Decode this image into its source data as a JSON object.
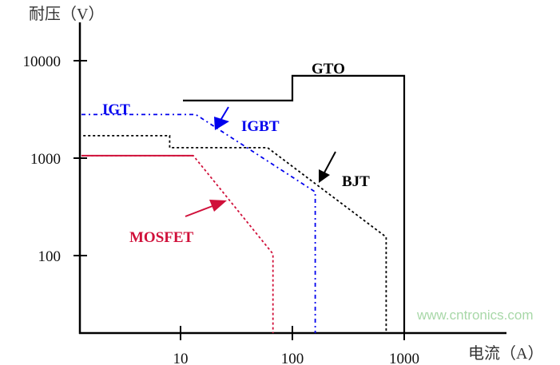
{
  "chart_data": {
    "type": "line",
    "xlabel": "电流（A）",
    "ylabel": "耐压（V）",
    "x_scale": "log",
    "y_scale": "log",
    "xlim": [
      1.26,
      7900
    ],
    "ylim": [
      16,
      24000
    ],
    "x_ticks": [
      {
        "value": 10,
        "label": "10"
      },
      {
        "value": 100,
        "label": "100"
      },
      {
        "value": 1000,
        "label": "1000"
      }
    ],
    "y_ticks": [
      {
        "value": 10000,
        "label": "10000"
      },
      {
        "value": 1000,
        "label": "1000"
      },
      {
        "value": 100,
        "label": "100"
      }
    ],
    "grid": false,
    "series": [
      {
        "name": "GTO",
        "color": "#000000",
        "style": "solid",
        "points": [
          [
            10.5,
            3900
          ],
          [
            100,
            3900
          ],
          [
            100,
            7000
          ],
          [
            1000,
            7000
          ],
          [
            1000,
            16
          ]
        ]
      },
      {
        "name": "IGBT",
        "color": "#0000ee",
        "style": "dash-dot",
        "points": [
          [
            1.3,
            2800
          ],
          [
            13.7,
            2800
          ],
          [
            160,
            450
          ],
          [
            160,
            16
          ]
        ]
      },
      {
        "name": "BJT",
        "color": "#000000",
        "style": "dotted",
        "points": [
          [
            1.35,
            1700
          ],
          [
            8,
            1700
          ],
          [
            8,
            1280
          ],
          [
            60,
            1280
          ],
          [
            690,
            155
          ],
          [
            690,
            16
          ]
        ]
      },
      {
        "name": "MOSFET",
        "color": "#d0103a",
        "style": "dotted",
        "points": [
          [
            1.3,
            1060
          ],
          [
            13,
            1060
          ],
          [
            67,
            104
          ],
          [
            67,
            16
          ]
        ]
      }
    ],
    "annotations": [
      {
        "text": "GTO",
        "color": "#000000"
      },
      {
        "text": "IGT",
        "color": "#0000ee"
      },
      {
        "text": "IGBT",
        "color": "#0000ee"
      },
      {
        "text": "BJT",
        "color": "#000000"
      },
      {
        "text": "MOSFET",
        "color": "#d0103a"
      }
    ]
  },
  "watermark": "www.cntronics.com"
}
